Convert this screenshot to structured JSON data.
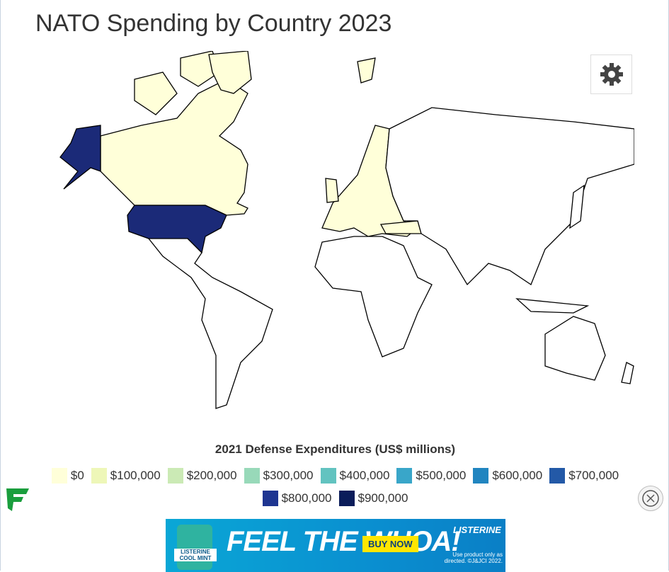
{
  "header": {
    "title": "NATO Spending by Country 2023"
  },
  "legend": {
    "title": "2021 Defense Expenditures (US$ millions)",
    "items": [
      {
        "label": "$0",
        "color": "#ffffd9"
      },
      {
        "label": "$100,000",
        "color": "#eef7b8"
      },
      {
        "label": "$200,000",
        "color": "#cbeab5"
      },
      {
        "label": "$300,000",
        "color": "#98d9b9"
      },
      {
        "label": "$400,000",
        "color": "#62c3c0"
      },
      {
        "label": "$500,000",
        "color": "#39a6c9"
      },
      {
        "label": "$600,000",
        "color": "#2185c0"
      },
      {
        "label": "$700,000",
        "color": "#2359a7"
      },
      {
        "label": "$800,000",
        "color": "#1e3591"
      },
      {
        "label": "$900,000",
        "color": "#0b1c5a"
      }
    ]
  },
  "ad": {
    "headline": "FEEL THE WHOA!",
    "button": "BUY NOW",
    "brand": "LISTERINE",
    "product": "LISTERINE COOL MINT",
    "disclaimer": "Use product only as directed. ©J&JCI 2022."
  }
}
